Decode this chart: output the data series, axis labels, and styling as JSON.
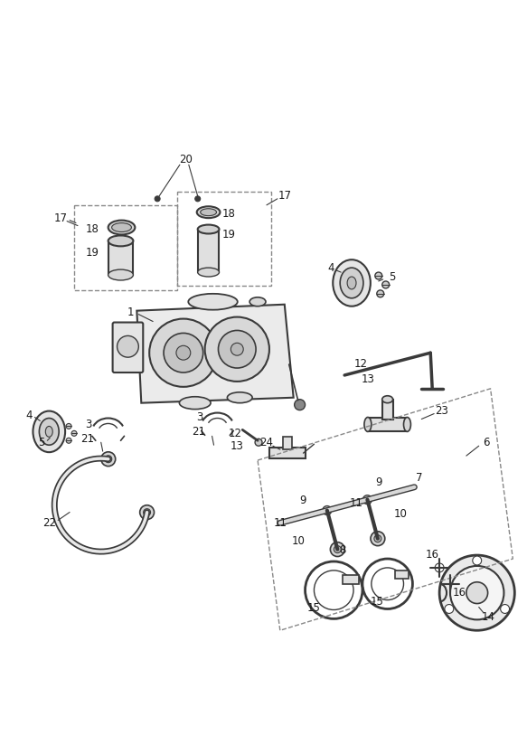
{
  "background_color": "#ffffff",
  "line_color": "#3a3a3a",
  "label_color": "#1a1a1a",
  "fig_width": 5.83,
  "fig_height": 8.24,
  "dpi": 100
}
